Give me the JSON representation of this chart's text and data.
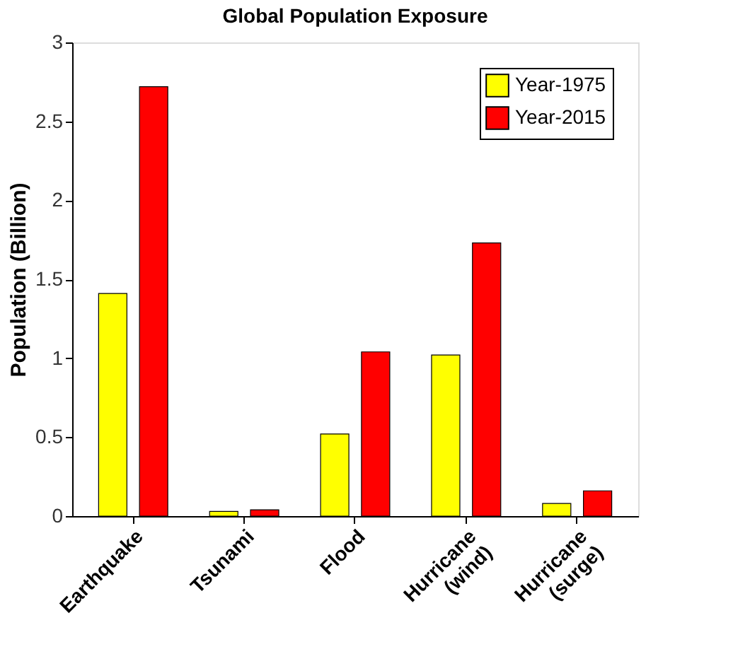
{
  "chart_data": {
    "type": "bar",
    "title": "Global Population Exposure",
    "ylabel": "Population (Billion)",
    "categories": [
      "Earthquake",
      "Tsunami",
      "Flood",
      "Hurricane (wind)",
      "Hurricane (surge)"
    ],
    "series": [
      {
        "name": "Year-1975",
        "color": "#ffff00",
        "values": [
          1.41,
          0.03,
          0.52,
          1.02,
          0.08
        ]
      },
      {
        "name": "Year-2015",
        "color": "#ff0000",
        "values": [
          2.72,
          0.04,
          1.04,
          1.73,
          0.16
        ]
      }
    ],
    "ylim": [
      0,
      3
    ],
    "yticks": [
      0,
      0.5,
      1,
      1.5,
      2,
      2.5,
      3
    ],
    "grid": false,
    "legend": "top right"
  }
}
